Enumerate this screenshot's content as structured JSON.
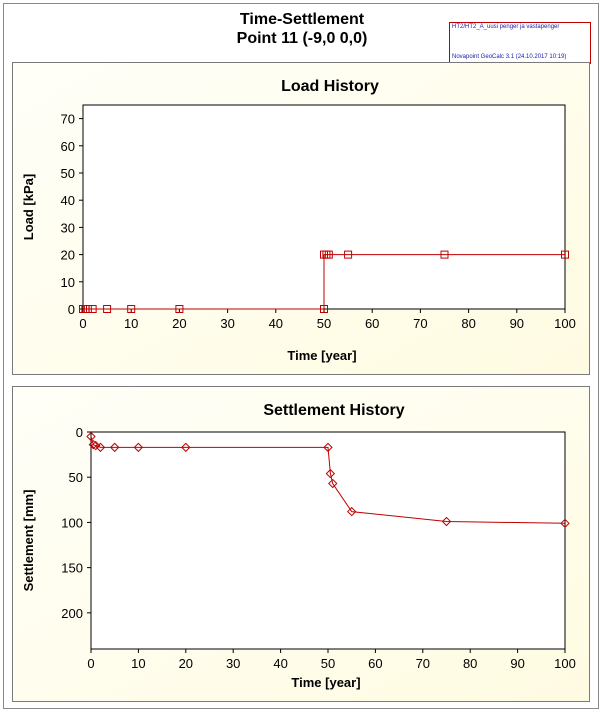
{
  "window": {
    "title_line1": "Time-Settlement",
    "title_line2": "Point 11 (-9,0 0,0)",
    "stamp_line1": "HT2/HT2_A_uusi penger ja vastapenger",
    "stamp_line2": "Novapoint GeoCalc 3.1 (24.10.2017 10:19)"
  },
  "colors": {
    "series": "#c00000",
    "axis": "#000000",
    "plot_background": "#ffffff"
  },
  "chart_data": [
    {
      "type": "line",
      "title": "Load History",
      "xlabel": "Time [year]",
      "ylabel": "Load [kPa]",
      "xlim": [
        0,
        100
      ],
      "ylim": [
        0,
        75
      ],
      "y_inverted": false,
      "xticks": [
        0,
        10,
        20,
        30,
        40,
        50,
        60,
        70,
        80,
        90,
        100
      ],
      "yticks": [
        0,
        10,
        20,
        30,
        40,
        50,
        60,
        70
      ],
      "marker": "square",
      "series": [
        {
          "x": [
            0,
            0.5,
            1,
            2,
            5,
            10,
            20,
            50,
            50,
            50.5,
            51,
            55,
            75,
            100
          ],
          "y": [
            0,
            0,
            0,
            0,
            0,
            0,
            0,
            0,
            20,
            20,
            20,
            20,
            20,
            20
          ]
        }
      ]
    },
    {
      "type": "line",
      "title": "Settlement History",
      "xlabel": "Time [year]",
      "ylabel": "Settlement [mm]",
      "xlim": [
        0,
        100
      ],
      "ylim": [
        0,
        240
      ],
      "y_inverted": true,
      "xticks": [
        0,
        10,
        20,
        30,
        40,
        50,
        60,
        70,
        80,
        90,
        100
      ],
      "yticks": [
        0,
        50,
        100,
        150,
        200
      ],
      "marker": "diamond",
      "series": [
        {
          "x": [
            0,
            0.5,
            1,
            2,
            5,
            10,
            20,
            50,
            50.5,
            51,
            55,
            75,
            100
          ],
          "y": [
            5,
            14,
            15,
            17,
            17,
            17,
            17,
            17,
            46,
            57,
            88,
            99,
            101
          ]
        }
      ]
    }
  ]
}
